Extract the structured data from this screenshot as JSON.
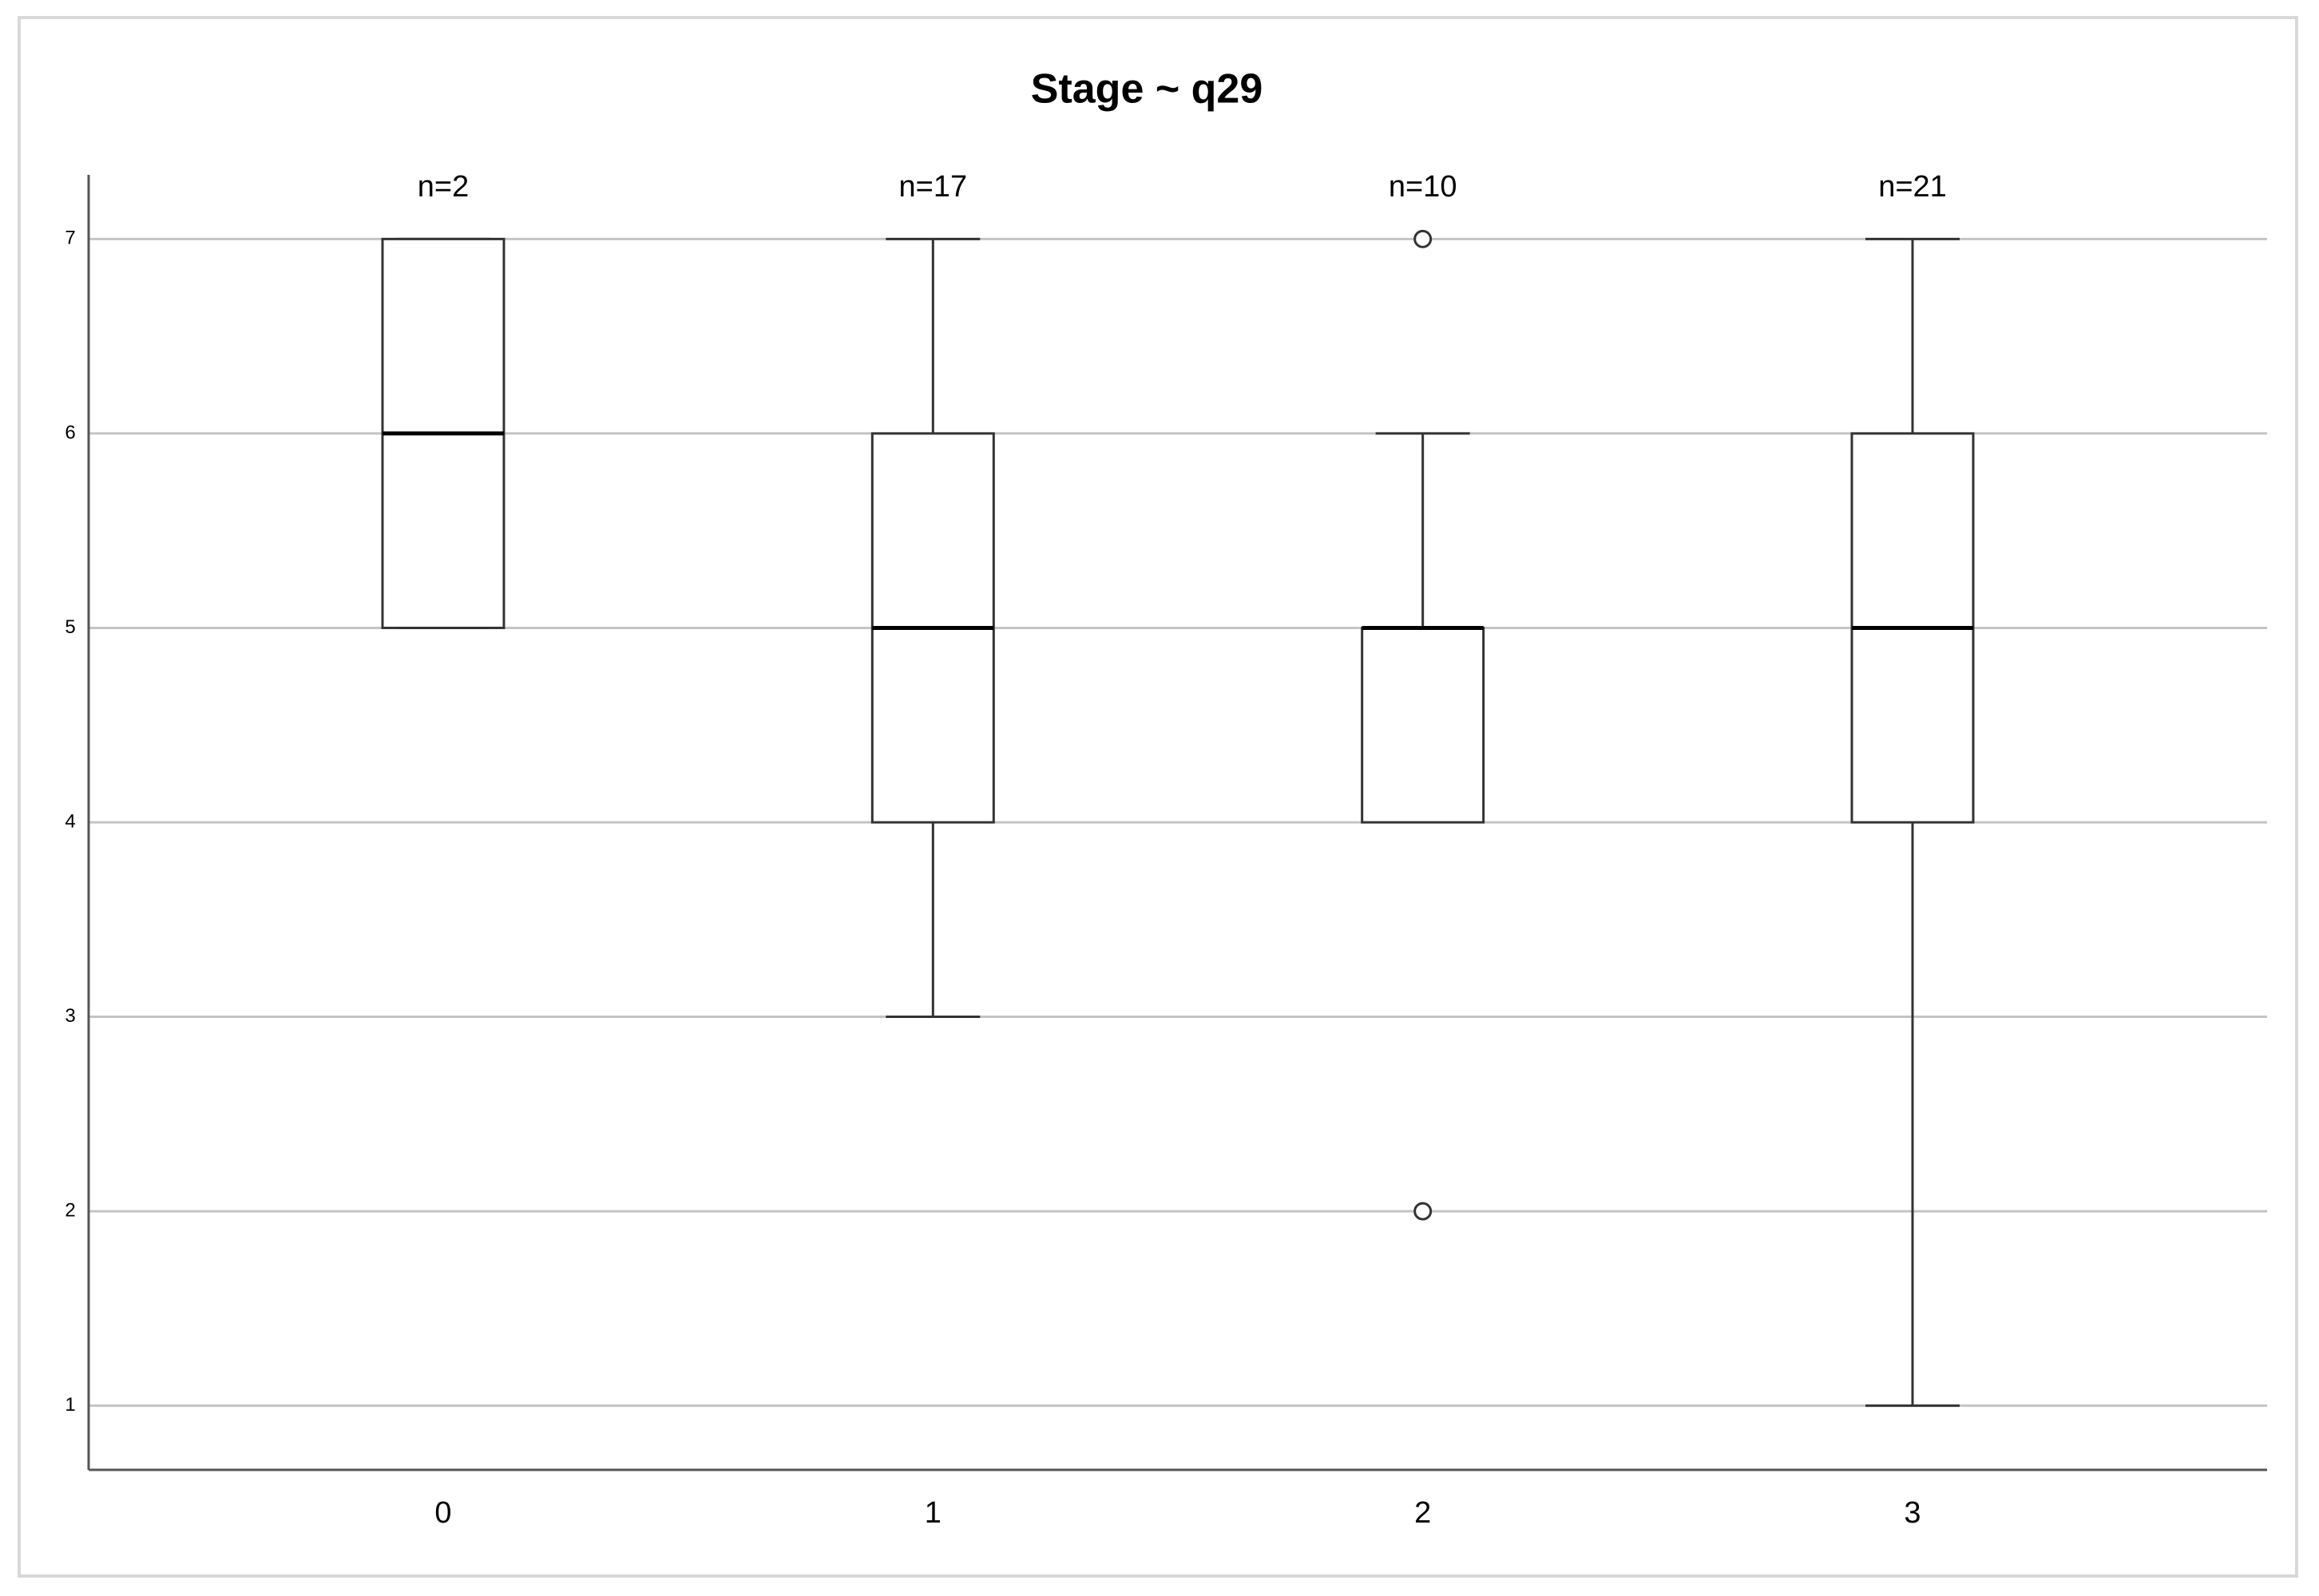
{
  "chart_data": {
    "type": "boxplot",
    "title": "Stage ~ q29",
    "categories": [
      "0",
      "1",
      "2",
      "3"
    ],
    "n_labels": [
      "n=2",
      "n=17",
      "n=10",
      "n=21"
    ],
    "boxes": [
      {
        "min": 5,
        "q1": 5,
        "median": 6,
        "q3": 7,
        "max": 7,
        "outliers": []
      },
      {
        "min": 3,
        "q1": 4,
        "median": 5,
        "q3": 6,
        "max": 7,
        "outliers": []
      },
      {
        "min": 4,
        "q1": 4,
        "median": 5,
        "q3": 5,
        "max": 6,
        "outliers": [
          7,
          2
        ]
      },
      {
        "min": 1,
        "q1": 4,
        "median": 5,
        "q3": 6,
        "max": 7,
        "outliers": []
      }
    ],
    "color": "#ffffff",
    "ylim": [
      0.67,
      7.33
    ],
    "yticks": [
      1,
      2,
      3,
      4,
      5,
      6,
      7
    ],
    "grid": true
  }
}
